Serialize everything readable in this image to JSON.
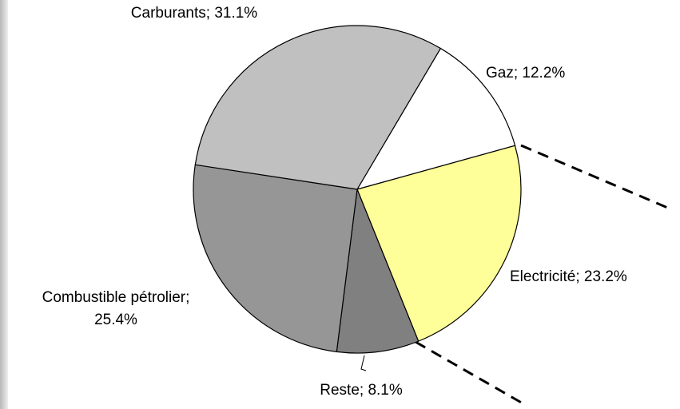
{
  "chart_data": {
    "type": "pie",
    "values": [
      12.2,
      23.2,
      8.1,
      25.4,
      31.1
    ],
    "value_labels": [
      "Gaz; 12.2%",
      "Electricité; 23.2%",
      "Reste; 8.1%",
      "Combustible pétrolier; 25.4%",
      "Carburants; 31.1%"
    ],
    "colors": [
      "#ffffff",
      "#ffff99",
      "#808080",
      "#969696",
      "#c0c0c0"
    ]
  }
}
